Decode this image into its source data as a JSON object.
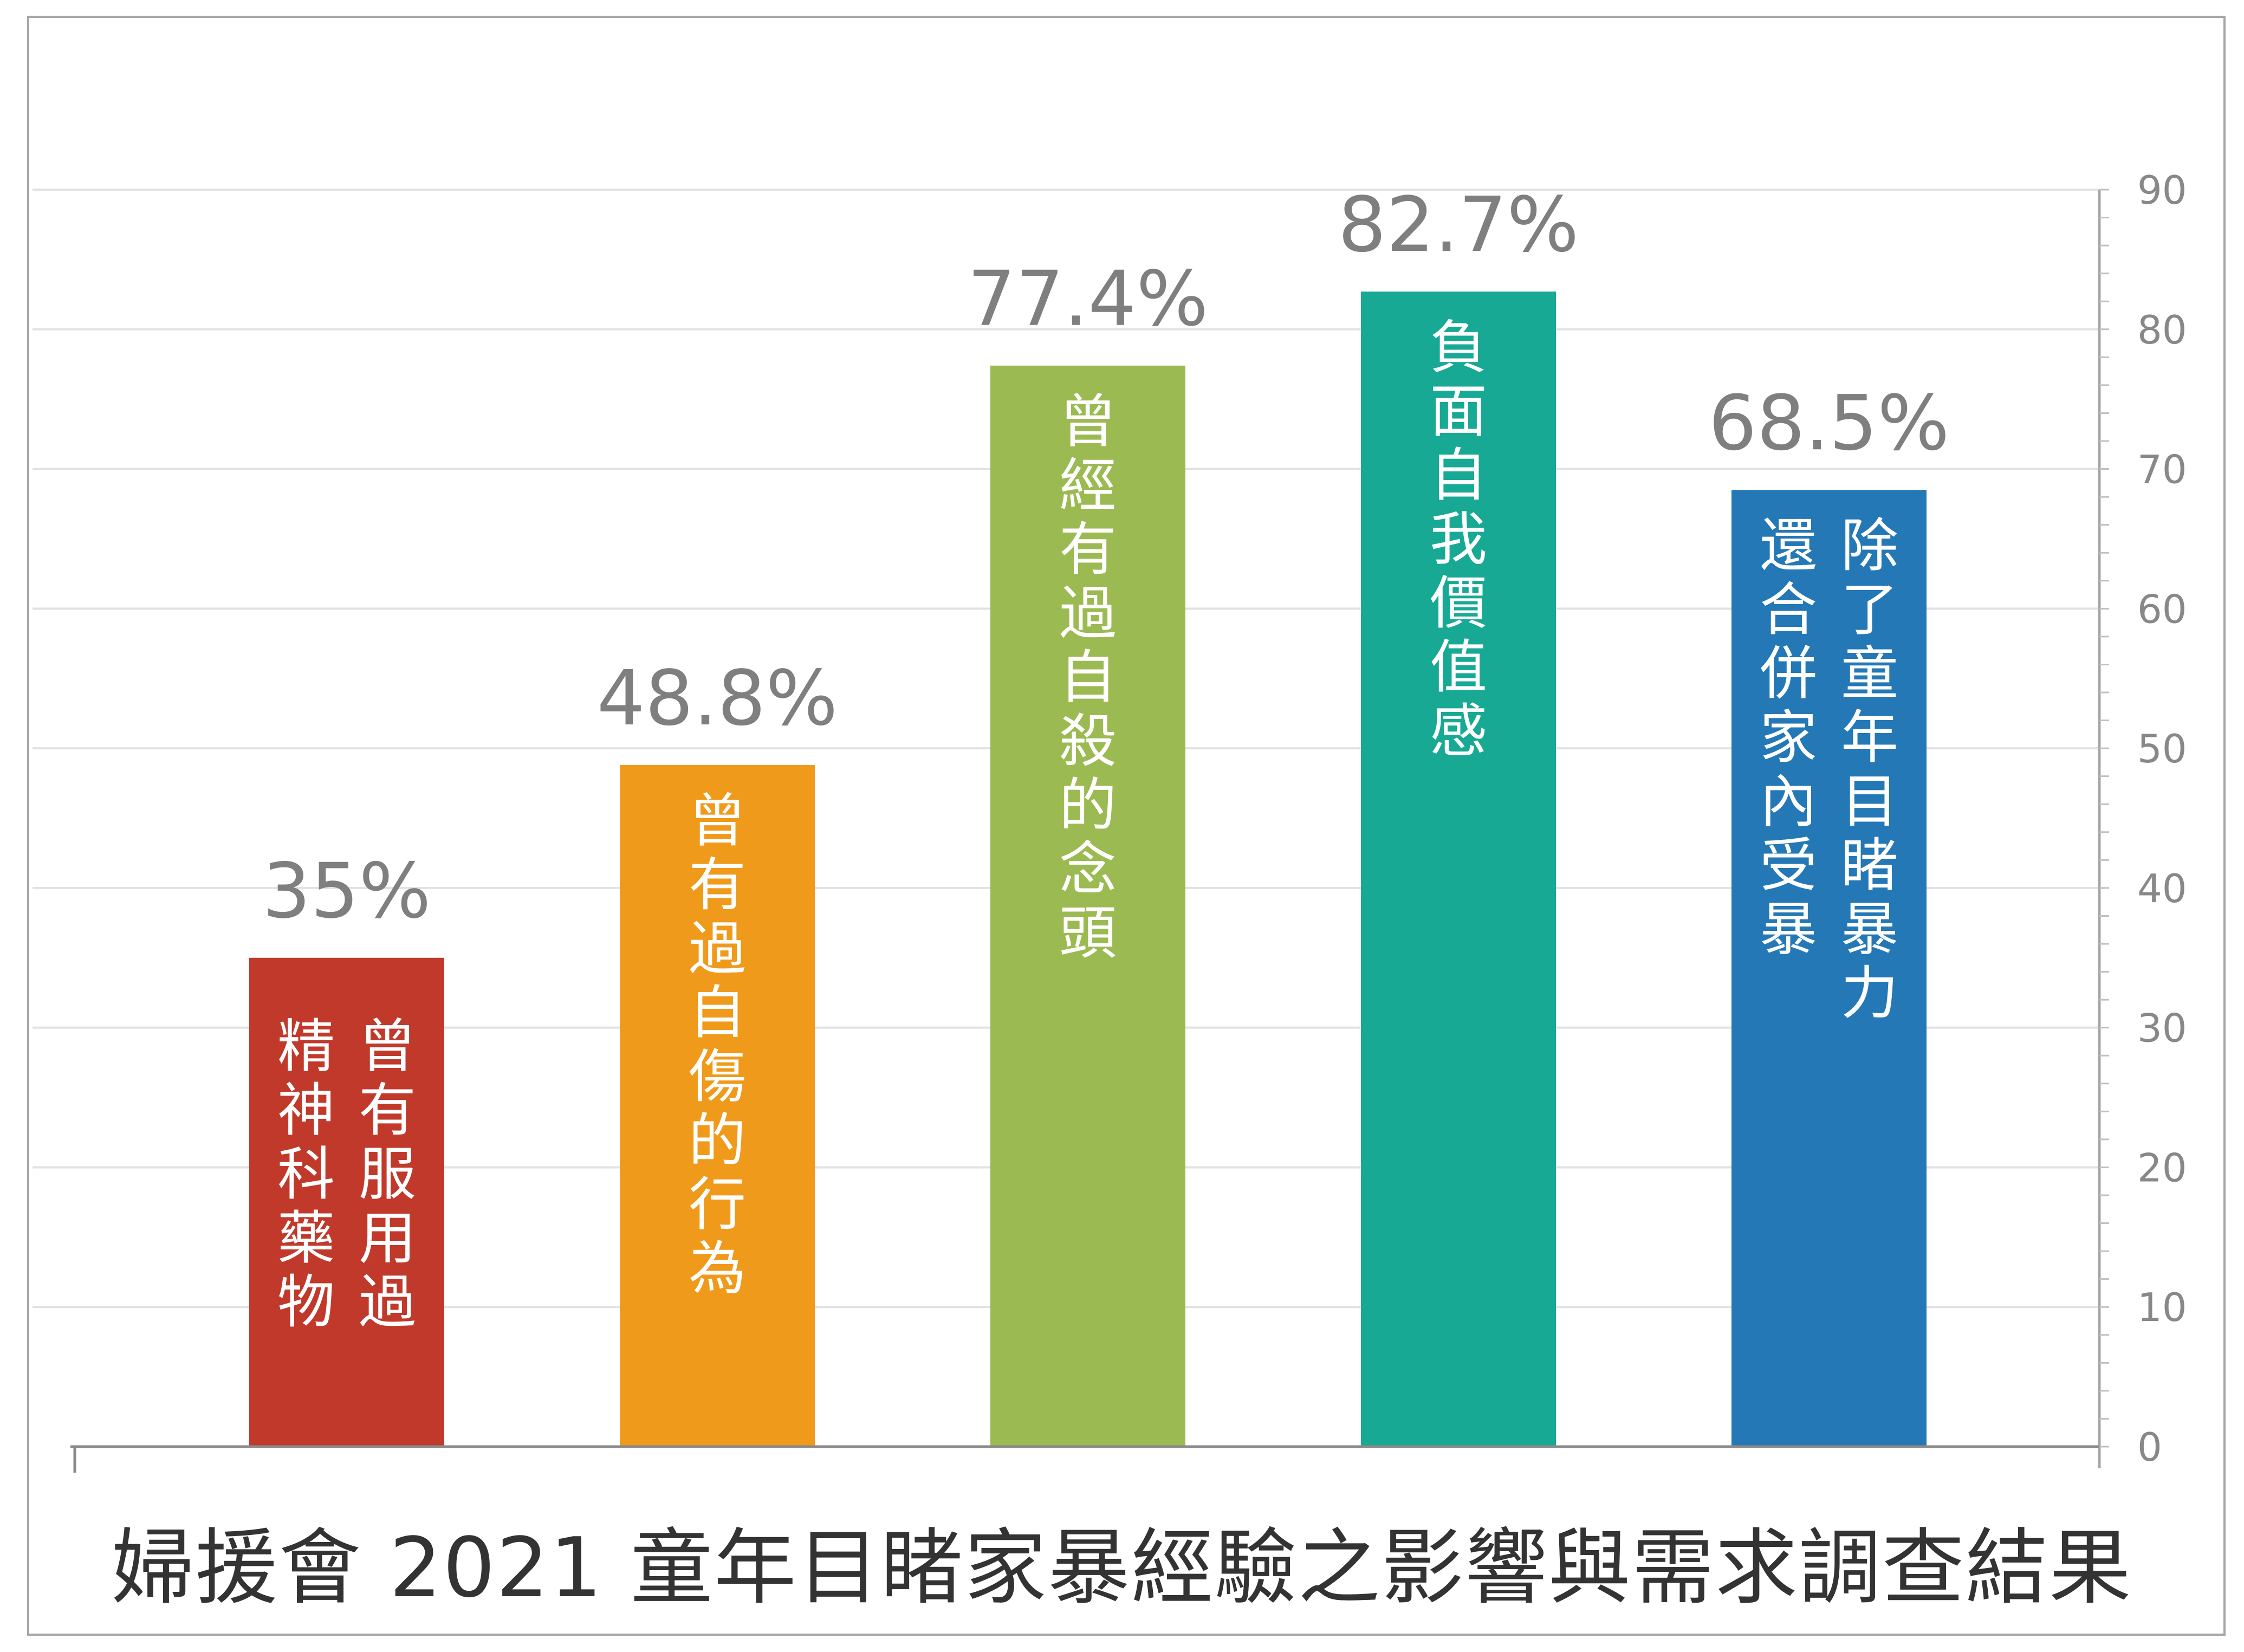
{
  "chart_data": {
    "type": "bar",
    "title": "婦援會 2021 童年目睹家暴經驗之影響與需求調查結果",
    "categories": [
      [
        "曾有服用過",
        "精神科藥物"
      ],
      [
        "曾有過自傷的行為"
      ],
      [
        "曾經有過自殺的念頭"
      ],
      [
        "負面自我價值感"
      ],
      [
        "除了童年目睹暴力",
        "還合併家內受暴"
      ]
    ],
    "values": [
      35,
      48.8,
      77.4,
      82.7,
      68.5
    ],
    "value_labels": [
      "35%",
      "48.8%",
      "77.4%",
      "82.7%",
      "68.5%"
    ],
    "colors": [
      "#c0392b",
      "#ef9a1a",
      "#9cba52",
      "#17a994",
      "#2478b5"
    ],
    "ylim": [
      0,
      90
    ],
    "yticks": [
      "0",
      "10",
      "20",
      "30",
      "40",
      "50",
      "60",
      "70",
      "80",
      "90"
    ],
    "y_axis_side": "right",
    "grid": true
  }
}
